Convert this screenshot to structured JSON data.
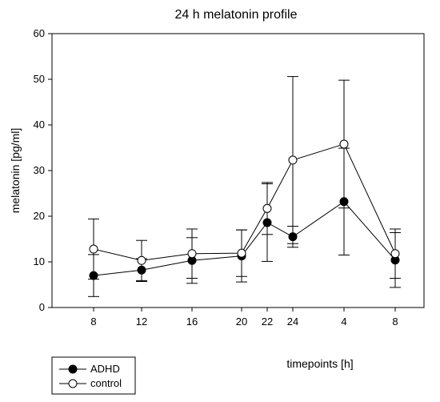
{
  "chart_data": {
    "type": "line",
    "title": "24 h melatonin profile",
    "xlabel": "timepoints [h]",
    "ylabel": "melatonin [pg/ml]",
    "categories": [
      "8",
      "12",
      "16",
      "20",
      "22",
      "24",
      "4",
      "8"
    ],
    "ylim": [
      0,
      60
    ],
    "yticks": [
      0,
      10,
      20,
      30,
      40,
      50,
      60
    ],
    "grid": false,
    "legend_position": "bottom-left",
    "series": [
      {
        "name": "ADHD",
        "marker": "filled-circle",
        "color": "#000000",
        "values": [
          7.0,
          8.2,
          10.3,
          11.3,
          18.6,
          15.5,
          23.2,
          10.4
        ],
        "error": [
          4.6,
          2.5,
          5.0,
          5.7,
          8.5,
          2.3,
          11.7,
          6.0
        ]
      },
      {
        "name": "control",
        "marker": "open-circle",
        "color": "#000000",
        "values": [
          12.8,
          10.3,
          11.8,
          11.9,
          21.7,
          32.3,
          35.8,
          11.8
        ],
        "error": [
          6.6,
          4.4,
          5.4,
          5.1,
          5.7,
          18.3,
          14.0,
          5.4
        ]
      }
    ]
  }
}
